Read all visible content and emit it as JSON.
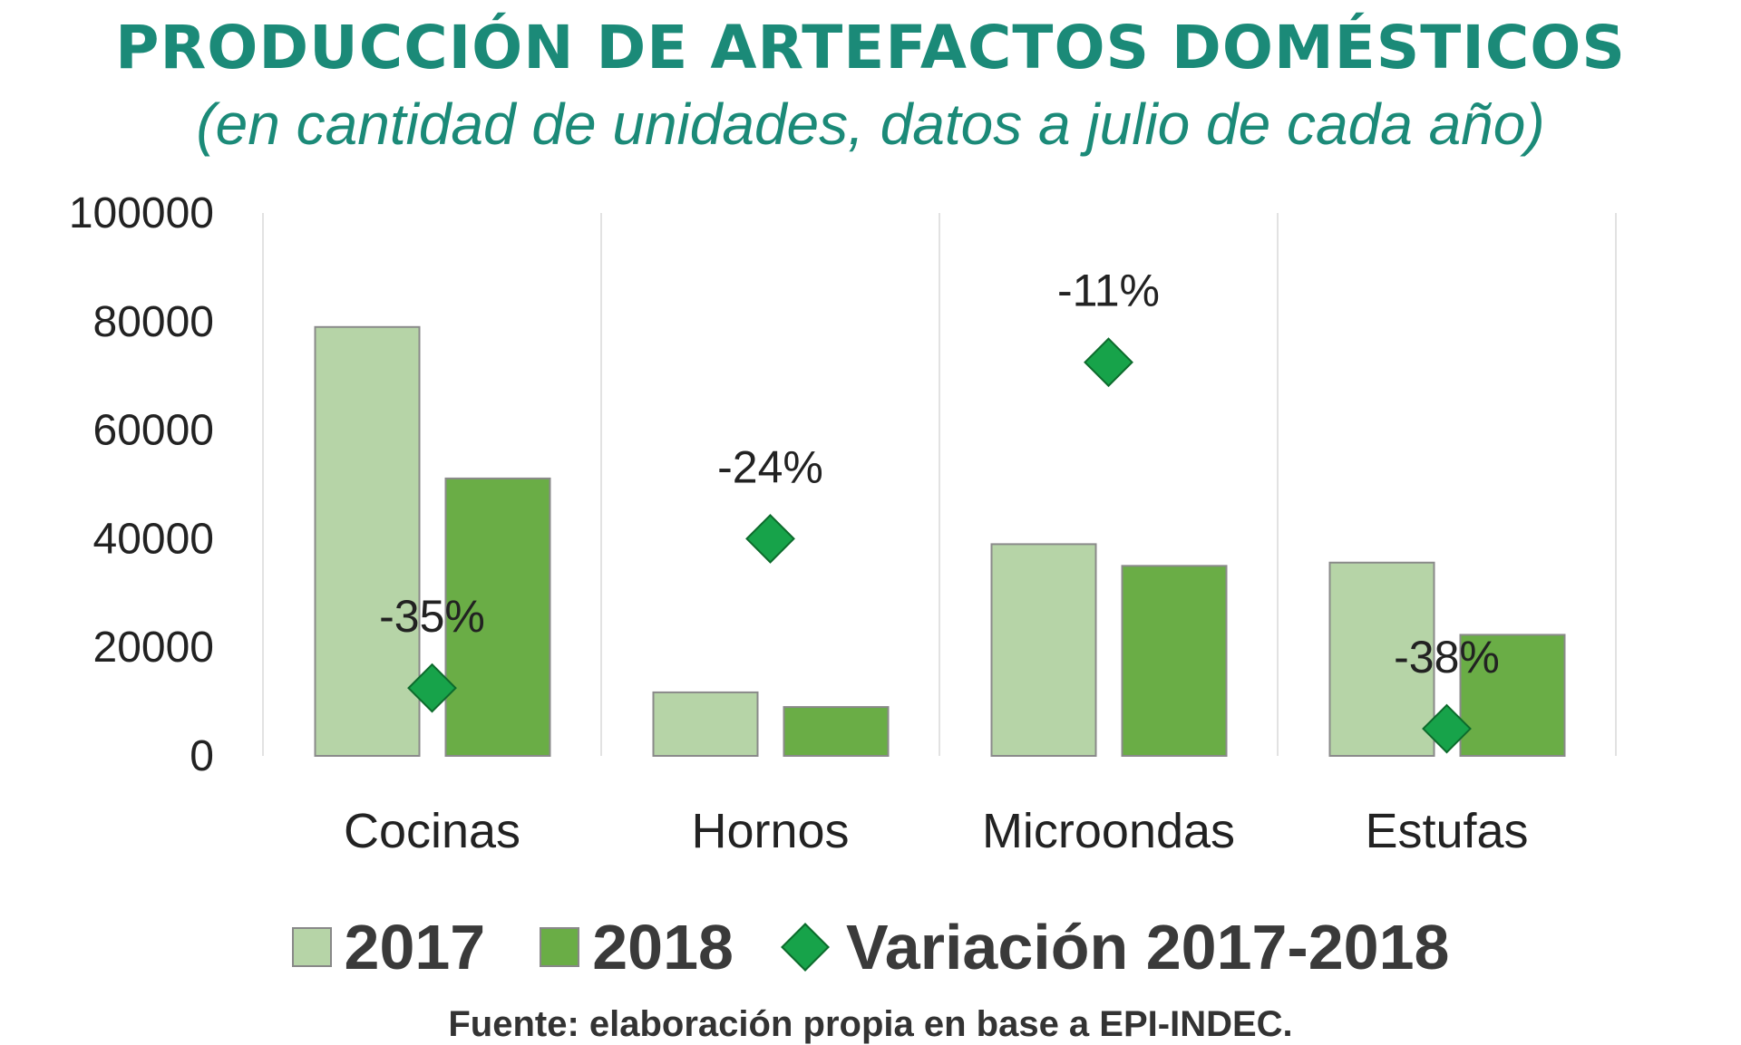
{
  "chart_data": {
    "type": "bar",
    "title": "PRODUCCIÓN DE ARTEFACTOS DOMÉSTICOS",
    "subtitle": "(en cantidad de unidades, datos a julio de cada año)",
    "categories": [
      "Cocinas",
      "Hornos",
      "Microondas",
      "Estufas"
    ],
    "series": [
      {
        "name": "2017",
        "type": "bar",
        "color": "#b6d4a7",
        "values": [
          79000,
          11700,
          39000,
          35600
        ]
      },
      {
        "name": "2018",
        "type": "bar",
        "color": "#6aad46",
        "values": [
          51100,
          9000,
          35000,
          22300
        ]
      },
      {
        "name": "Variación 2017-2018",
        "type": "scatter",
        "axis": "secondary",
        "color": "#17a34a",
        "values": [
          -35,
          -24,
          -11,
          -38
        ],
        "labels": [
          "-35%",
          "-24%",
          "-11%",
          "-38%"
        ]
      }
    ],
    "ylim": [
      0,
      100000
    ],
    "y2lim": [
      -40,
      0
    ],
    "yticks": [
      "0",
      "20000",
      "40000",
      "60000",
      "80000",
      "100000"
    ],
    "xlabel": "",
    "ylabel": "",
    "legend": "bottom",
    "source": "Fuente: elaboración propia en base a EPI-INDEC."
  }
}
